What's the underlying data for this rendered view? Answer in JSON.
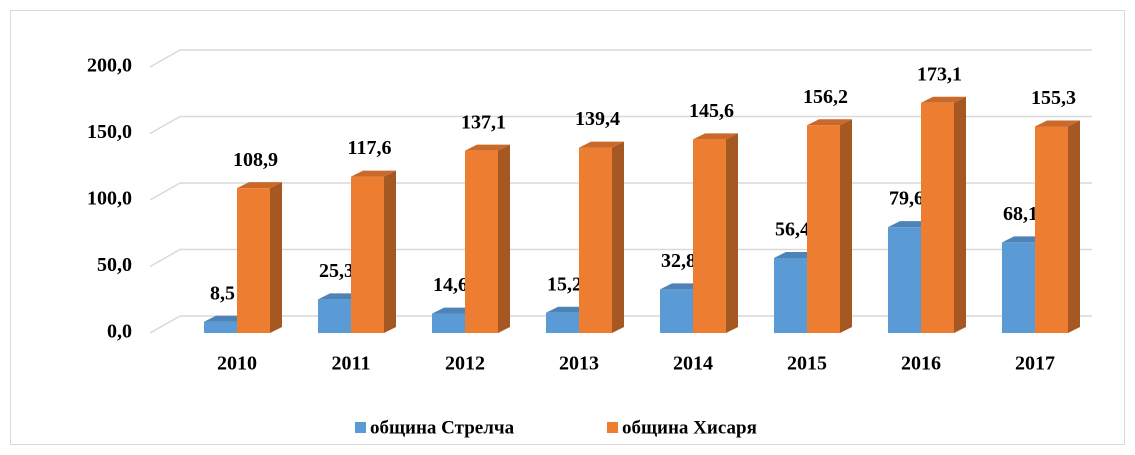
{
  "chart_data": {
    "type": "bar3d",
    "categories": [
      "2010",
      "2011",
      "2012",
      "2013",
      "2014",
      "2015",
      "2016",
      "2017"
    ],
    "series": [
      {
        "name": "община Стрелча",
        "color": "#5b9bd5",
        "values": [
          8.5,
          25.3,
          14.6,
          15.2,
          32.8,
          56.4,
          79.6,
          68.1
        ],
        "value_labels": [
          "8,5",
          "25,3",
          "14,6",
          "15,2",
          "32,8",
          "56,4",
          "79,6",
          "68,1"
        ]
      },
      {
        "name": "община Хисаря",
        "color": "#ed7d31",
        "values": [
          108.9,
          117.6,
          137.1,
          139.4,
          145.6,
          156.2,
          173.1,
          155.3
        ],
        "value_labels": [
          "108,9",
          "117,6",
          "137,1",
          "139,4",
          "145,6",
          "156,2",
          "173,1",
          "155,3"
        ]
      }
    ],
    "ylim": [
      0,
      200
    ],
    "yticks": [
      {
        "value": 0,
        "label": "0,0"
      },
      {
        "value": 50,
        "label": "50,0"
      },
      {
        "value": 100,
        "label": "100,0"
      },
      {
        "value": 150,
        "label": "150,0"
      },
      {
        "value": 200,
        "label": "200,0"
      }
    ],
    "grid": true,
    "legend": "bottom"
  }
}
